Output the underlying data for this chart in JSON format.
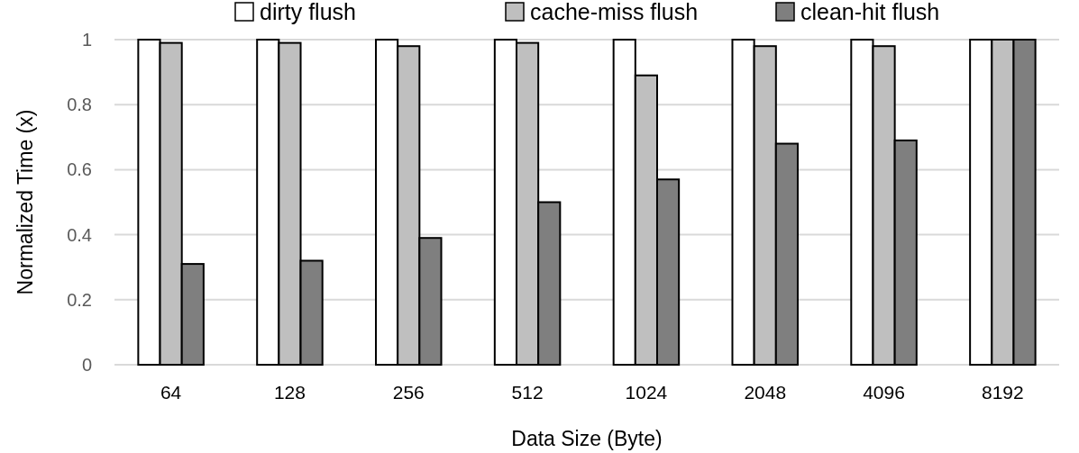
{
  "chart_data": {
    "type": "bar",
    "xlabel": "Data Size (Byte)",
    "ylabel": "Normalized Time (x)",
    "categories": [
      "64",
      "128",
      "256",
      "512",
      "1024",
      "2048",
      "4096",
      "8192"
    ],
    "series": [
      {
        "name": "dirty flush",
        "color": "#ffffff",
        "values": [
          1,
          1,
          1,
          1,
          1,
          1,
          1,
          1
        ]
      },
      {
        "name": "cache-miss flush",
        "color": "#bfbfbf",
        "values": [
          0.99,
          0.99,
          0.98,
          0.99,
          0.89,
          0.98,
          0.98,
          1
        ]
      },
      {
        "name": "clean-hit flush",
        "color": "#7f7f7f",
        "values": [
          0.31,
          0.32,
          0.39,
          0.5,
          0.57,
          0.68,
          0.69,
          1
        ]
      }
    ],
    "ylim": [
      0,
      1
    ],
    "yticks": [
      0,
      0.2,
      0.4,
      0.6,
      0.8,
      1
    ],
    "grid": "y",
    "legend": "top"
  }
}
